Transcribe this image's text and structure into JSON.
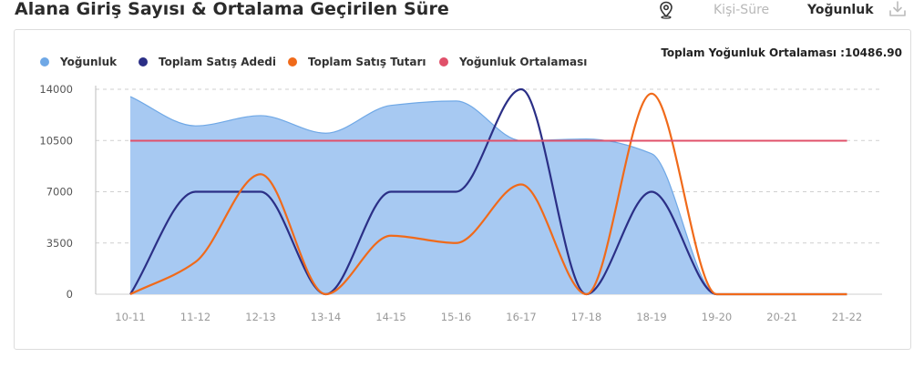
{
  "header": {
    "title": "Alana Giriş Sayısı & Ortalama Geçirilen Süre",
    "tab_kisi_sure": "Kişi-Süre",
    "tab_yogunluk": "Yoğunluk",
    "pin_icon": "location-pin-icon",
    "download_icon": "download-icon"
  },
  "summary": {
    "average_text": "Toplam Yoğunluk Ortalaması :10486.90"
  },
  "legend": [
    {
      "label": "Yoğunluk",
      "color": "#6fa8e6"
    },
    {
      "label": "Toplam Satış Adedi",
      "color": "#2b2f86"
    },
    {
      "label": "Toplam Satış Tutarı",
      "color": "#f06a1a"
    },
    {
      "label": "Yoğunluk Ortalaması",
      "color": "#e0506a"
    }
  ],
  "chart_data": {
    "type": "line",
    "categories": [
      "10-11",
      "11-12",
      "12-13",
      "13-14",
      "14-15",
      "15-16",
      "16-17",
      "17-18",
      "18-19",
      "19-20",
      "20-21",
      "21-22"
    ],
    "y_ticks": [
      "14000",
      "10500",
      "7000",
      "3500",
      "0"
    ],
    "ylim": [
      0,
      14000
    ],
    "grid": true,
    "legend_position": "top-left",
    "series": [
      {
        "name": "Yoğunluk",
        "kind": "area",
        "color": "#6fa8e6",
        "fill": "#a7c9f2",
        "values": [
          13500,
          11500,
          12200,
          11000,
          12900,
          13200,
          10500,
          10600,
          9600,
          0,
          0,
          0
        ]
      },
      {
        "name": "Toplam Satış Adedi",
        "kind": "line",
        "color": "#2b2f86",
        "values": [
          0,
          7000,
          7000,
          0,
          7000,
          7000,
          14000,
          0,
          7000,
          0,
          0,
          0
        ]
      },
      {
        "name": "Toplam Satış Tutarı",
        "kind": "line",
        "color": "#f06a1a",
        "values": [
          0,
          2200,
          8200,
          0,
          4000,
          3500,
          7500,
          0,
          13700,
          0,
          0,
          0
        ]
      },
      {
        "name": "Yoğunluk Ortalaması",
        "kind": "line",
        "color": "#e0506a",
        "values": [
          10486.9,
          10486.9,
          10486.9,
          10486.9,
          10486.9,
          10486.9,
          10486.9,
          10486.9,
          10486.9,
          10486.9,
          10486.9,
          10486.9
        ]
      }
    ]
  }
}
